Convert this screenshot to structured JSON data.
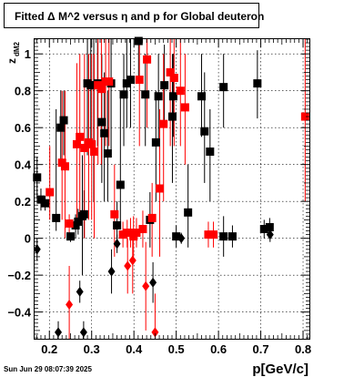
{
  "chart_data": {
    "type": "scatter",
    "title": "Fitted Δ M^2 versus η and p for Global deuteron",
    "xlabel": "p[GeV/c]",
    "ylabel": "z",
    "ylabel_sub": "dM2",
    "xlim": [
      0.165,
      0.815
    ],
    "ylim": [
      -0.545,
      1.08
    ],
    "x_ticks": [
      0.2,
      0.3,
      0.4,
      0.5,
      0.6,
      0.7,
      0.8
    ],
    "x_tick_labels": [
      "0.2",
      "0.3",
      "0.4",
      "0.5",
      "0.6",
      "0.7",
      "0.8"
    ],
    "y_ticks": [
      -0.4,
      -0.2,
      0,
      0.2,
      0.4,
      0.6,
      0.8,
      1
    ],
    "y_tick_labels": [
      "−0.4",
      "−0.2",
      "0",
      "0.2",
      "0.4",
      "0.6",
      "0.8",
      "1"
    ],
    "grid": true,
    "colors": {
      "black": "#000000",
      "red": "#ff0000"
    },
    "series": [
      {
        "color": "#000000",
        "marker": "square",
        "points": [
          {
            "x": 0.171,
            "y": 0.33,
            "lo": 0.22,
            "hi": 0.44
          },
          {
            "x": 0.18,
            "y": 0.21,
            "lo": 0.15,
            "hi": 0.27
          },
          {
            "x": 0.19,
            "y": 0.19,
            "lo": 0.15,
            "hi": 0.23
          },
          {
            "x": 0.216,
            "y": 0.11,
            "lo": 0.04,
            "hi": 0.7
          },
          {
            "x": 0.227,
            "y": 0.6,
            "lo": 0.4,
            "hi": 0.8
          },
          {
            "x": 0.234,
            "y": 0.64,
            "lo": 0.45,
            "hi": 0.8
          },
          {
            "x": 0.25,
            "y": 0.01,
            "lo": -0.02,
            "hi": 0.03
          },
          {
            "x": 0.262,
            "y": 0.07,
            "lo": 0.0,
            "hi": 0.13
          },
          {
            "x": 0.268,
            "y": 0.09,
            "lo": 0.02,
            "hi": 0.16
          },
          {
            "x": 0.278,
            "y": 0.12,
            "lo": -0.2,
            "hi": 0.45
          },
          {
            "x": 0.282,
            "y": 0.13,
            "lo": 0.0,
            "hi": 0.26
          },
          {
            "x": 0.29,
            "y": 0.84,
            "lo": 0.45,
            "hi": 1.08
          },
          {
            "x": 0.298,
            "y": 0.83,
            "lo": 0.5,
            "hi": 1.08
          },
          {
            "x": 0.305,
            "y": 0.83,
            "lo": 0.2,
            "hi": 1.08
          },
          {
            "x": 0.314,
            "y": 0.84,
            "lo": 0.5,
            "hi": 1.08
          },
          {
            "x": 0.324,
            "y": 0.63,
            "lo": 0.3,
            "hi": 1.0
          },
          {
            "x": 0.33,
            "y": 0.57,
            "lo": 0.2,
            "hi": 0.9
          },
          {
            "x": 0.338,
            "y": 0.46,
            "lo": 0.2,
            "hi": 0.8
          },
          {
            "x": 0.346,
            "y": 0.84,
            "lo": 0.45,
            "hi": 1.08
          },
          {
            "x": 0.36,
            "y": 0.07,
            "lo": -0.02,
            "hi": 0.2
          },
          {
            "x": 0.368,
            "y": 0.29,
            "lo": 0.05,
            "hi": 0.8
          },
          {
            "x": 0.376,
            "y": 0.78,
            "lo": 0.5,
            "hi": 1.0
          },
          {
            "x": 0.383,
            "y": 0.84,
            "lo": 0.6,
            "hi": 1.08
          },
          {
            "x": 0.392,
            "y": 0.86,
            "lo": 0.6,
            "hi": 1.08
          },
          {
            "x": 0.411,
            "y": 1.07,
            "lo": 0.85,
            "hi": 1.08
          },
          {
            "x": 0.427,
            "y": 0.78,
            "lo": 0.5,
            "hi": 1.0
          },
          {
            "x": 0.438,
            "y": 0.1,
            "lo": -0.05,
            "hi": 0.25
          },
          {
            "x": 0.452,
            "y": 0.52,
            "lo": 0.2,
            "hi": 0.8
          },
          {
            "x": 0.458,
            "y": 0.77,
            "lo": 0.5,
            "hi": 1.0
          },
          {
            "x": 0.472,
            "y": 0.83,
            "lo": 0.6,
            "hi": 1.05
          },
          {
            "x": 0.491,
            "y": 0.66,
            "lo": 0.3,
            "hi": 1.0
          },
          {
            "x": 0.493,
            "y": 0.77,
            "lo": 0.55,
            "hi": 1.0
          },
          {
            "x": 0.5,
            "y": 0.01,
            "lo": -0.05,
            "hi": 0.07
          },
          {
            "x": 0.528,
            "y": 0.14,
            "lo": -0.05,
            "hi": 0.4
          },
          {
            "x": 0.56,
            "y": 0.77,
            "lo": 0.55,
            "hi": 1.0
          },
          {
            "x": 0.567,
            "y": 0.58,
            "lo": 0.3,
            "hi": 0.9
          },
          {
            "x": 0.58,
            "y": 0.47,
            "lo": 0.2,
            "hi": 0.7
          },
          {
            "x": 0.612,
            "y": 0.82,
            "lo": 0.6,
            "hi": 1.0
          },
          {
            "x": 0.612,
            "y": 0.01,
            "lo": -0.1,
            "hi": 0.12
          },
          {
            "x": 0.633,
            "y": 0.01,
            "lo": -0.05,
            "hi": 0.07
          },
          {
            "x": 0.692,
            "y": 0.84,
            "lo": 0.65,
            "hi": 1.02
          },
          {
            "x": 0.708,
            "y": 0.05,
            "lo": 0.0,
            "hi": 0.1
          },
          {
            "x": 0.721,
            "y": 0.06,
            "lo": 0.01,
            "hi": 0.11
          }
        ]
      },
      {
        "color": "#000000",
        "marker": "diamond",
        "points": [
          {
            "x": 0.171,
            "y": -0.06,
            "lo": -0.12,
            "hi": 0.0
          },
          {
            "x": 0.221,
            "y": -0.51,
            "lo": -0.545,
            "hi": -0.45
          },
          {
            "x": 0.272,
            "y": -0.29,
            "lo": -0.35,
            "hi": -0.23
          },
          {
            "x": 0.281,
            "y": -0.51,
            "lo": -0.545,
            "hi": -0.45
          },
          {
            "x": 0.347,
            "y": -0.18,
            "lo": -0.3,
            "hi": -0.06
          },
          {
            "x": 0.36,
            "y": -0.03,
            "lo": -0.08,
            "hi": 0.02
          },
          {
            "x": 0.445,
            "y": -0.24,
            "lo": -0.35,
            "hi": -0.13
          },
          {
            "x": 0.512,
            "y": 0.0,
            "lo": -0.03,
            "hi": 0.03
          },
          {
            "x": 0.722,
            "y": 0.02,
            "lo": -0.02,
            "hi": 0.06
          }
        ]
      },
      {
        "color": "#ff0000",
        "marker": "square",
        "points": [
          {
            "x": 0.201,
            "y": 0.25,
            "lo": 0.1,
            "hi": 0.5
          },
          {
            "x": 0.23,
            "y": 0.41,
            "lo": 0.1,
            "hi": 0.8
          },
          {
            "x": 0.237,
            "y": 0.39,
            "lo": 0.0,
            "hi": 0.8
          },
          {
            "x": 0.247,
            "y": 0.08,
            "lo": 0.03,
            "hi": 0.13
          },
          {
            "x": 0.265,
            "y": 0.51,
            "lo": 0.1,
            "hi": 0.95
          },
          {
            "x": 0.272,
            "y": 0.55,
            "lo": 0.1,
            "hi": 1.0
          },
          {
            "x": 0.283,
            "y": 0.49,
            "lo": 0.0,
            "hi": 1.0
          },
          {
            "x": 0.293,
            "y": 0.52,
            "lo": 0.1,
            "hi": 1.0
          },
          {
            "x": 0.3,
            "y": 0.51,
            "lo": 0.1,
            "hi": 1.0
          },
          {
            "x": 0.306,
            "y": 0.47,
            "lo": 0.0,
            "hi": 1.0
          },
          {
            "x": 0.315,
            "y": 0.83,
            "lo": 0.4,
            "hi": 1.08
          },
          {
            "x": 0.323,
            "y": 0.81,
            "lo": 0.4,
            "hi": 1.08
          },
          {
            "x": 0.333,
            "y": 0.85,
            "lo": 0.5,
            "hi": 1.08
          },
          {
            "x": 0.341,
            "y": 0.85,
            "lo": 0.5,
            "hi": 1.08
          },
          {
            "x": 0.354,
            "y": 0.13,
            "lo": -0.1,
            "hi": 0.4
          },
          {
            "x": 0.374,
            "y": 0.02,
            "lo": -0.05,
            "hi": 0.09
          },
          {
            "x": 0.384,
            "y": 0.03,
            "lo": -0.05,
            "hi": 0.1
          },
          {
            "x": 0.392,
            "y": 0.03,
            "lo": -0.05,
            "hi": 0.11
          },
          {
            "x": 0.399,
            "y": 0.01,
            "lo": -0.1,
            "hi": 0.12
          },
          {
            "x": 0.406,
            "y": 0.03,
            "lo": -0.05,
            "hi": 0.11
          },
          {
            "x": 0.413,
            "y": 0.86,
            "lo": 0.5,
            "hi": 1.08
          },
          {
            "x": 0.421,
            "y": 0.05,
            "lo": -0.05,
            "hi": 0.15
          },
          {
            "x": 0.431,
            "y": 0.97,
            "lo": 0.6,
            "hi": 1.08
          },
          {
            "x": 0.443,
            "y": 0.11,
            "lo": -0.1,
            "hi": 0.3
          },
          {
            "x": 0.461,
            "y": 0.27,
            "lo": -0.1,
            "hi": 0.7
          },
          {
            "x": 0.47,
            "y": 0.62,
            "lo": 0.2,
            "hi": 1.0
          },
          {
            "x": 0.486,
            "y": 0.9,
            "lo": 0.5,
            "hi": 1.08
          },
          {
            "x": 0.495,
            "y": 0.87,
            "lo": 0.5,
            "hi": 1.08
          },
          {
            "x": 0.51,
            "y": 0.8,
            "lo": 0.5,
            "hi": 1.08
          },
          {
            "x": 0.521,
            "y": 0.71,
            "lo": 0.4,
            "hi": 1.0
          },
          {
            "x": 0.576,
            "y": 0.02,
            "lo": -0.05,
            "hi": 0.09
          },
          {
            "x": 0.588,
            "y": 0.02,
            "lo": -0.05,
            "hi": 0.09
          },
          {
            "x": 0.805,
            "y": 0.66,
            "lo": 0.2,
            "hi": 1.08
          }
        ]
      },
      {
        "color": "#ff0000",
        "marker": "diamond",
        "points": [
          {
            "x": 0.247,
            "y": -0.36,
            "lo": -0.545,
            "hi": -0.15
          },
          {
            "x": 0.385,
            "y": -0.15,
            "lo": -0.3,
            "hi": 0.0
          },
          {
            "x": 0.397,
            "y": -0.12,
            "lo": -0.3,
            "hi": 0.05
          },
          {
            "x": 0.428,
            "y": -0.26,
            "lo": -0.5,
            "hi": -0.02
          },
          {
            "x": 0.45,
            "y": -0.51,
            "lo": -0.545,
            "hi": -0.3
          }
        ]
      }
    ]
  },
  "footer": {
    "timestamp": "Sun Jun 29 08:07:39 2025"
  }
}
